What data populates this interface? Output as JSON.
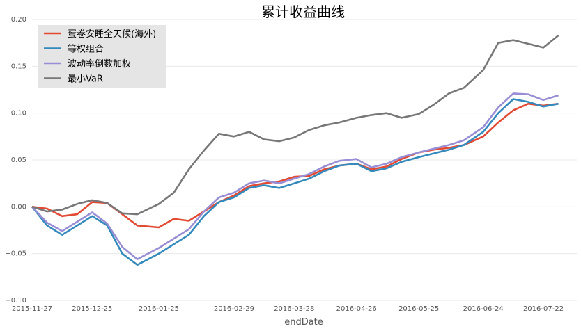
{
  "chart_data": {
    "type": "line",
    "title": "累计收益曲线",
    "xlabel": "endDate",
    "ylabel": "",
    "ylim": [
      -0.1,
      0.2
    ],
    "grid": true,
    "legend_position": "top-left",
    "x_ticks": [
      "2015-11-27",
      "2015-12-25",
      "2016-01-25",
      "2016-02-29",
      "2016-03-28",
      "2016-04-26",
      "2016-05-25",
      "2016-06-24",
      "2016-07-22"
    ],
    "y_ticks": [
      -0.1,
      -0.05,
      0.0,
      0.05,
      0.1,
      0.15,
      0.2
    ],
    "y_tick_labels": [
      "−0.10",
      "−0.05",
      "0.00",
      "0.05",
      "0.10",
      "0.15",
      "0.20"
    ],
    "x": [
      "2015-11-27",
      "2015-12-04",
      "2015-12-11",
      "2015-12-18",
      "2015-12-25",
      "2016-01-01",
      "2016-01-08",
      "2016-01-15",
      "2016-01-25",
      "2016-02-01",
      "2016-02-08",
      "2016-02-15",
      "2016-02-22",
      "2016-02-29",
      "2016-03-07",
      "2016-03-14",
      "2016-03-21",
      "2016-03-28",
      "2016-04-04",
      "2016-04-11",
      "2016-04-18",
      "2016-04-26",
      "2016-05-03",
      "2016-05-10",
      "2016-05-17",
      "2016-05-25",
      "2016-06-01",
      "2016-06-08",
      "2016-06-15",
      "2016-06-24",
      "2016-07-01",
      "2016-07-08",
      "2016-07-15",
      "2016-07-22",
      "2016-07-29"
    ],
    "series": [
      {
        "name": "蛋卷安睡全天候(海外)",
        "color": "#e24a33",
        "values": [
          0.0,
          -0.002,
          -0.01,
          -0.008,
          0.005,
          0.004,
          -0.008,
          -0.02,
          -0.022,
          -0.013,
          -0.015,
          -0.005,
          0.005,
          0.012,
          0.022,
          0.025,
          0.027,
          0.032,
          0.033,
          0.04,
          0.044,
          0.046,
          0.04,
          0.043,
          0.051,
          0.058,
          0.061,
          0.063,
          0.066,
          0.075,
          0.09,
          0.103,
          0.11,
          0.108,
          0.11
        ]
      },
      {
        "name": "等权组合",
        "color": "#348abd",
        "values": [
          0.0,
          -0.02,
          -0.03,
          -0.02,
          -0.01,
          -0.02,
          -0.05,
          -0.062,
          -0.05,
          -0.04,
          -0.03,
          -0.01,
          0.005,
          0.01,
          0.02,
          0.023,
          0.02,
          0.025,
          0.03,
          0.038,
          0.044,
          0.046,
          0.038,
          0.041,
          0.048,
          0.053,
          0.057,
          0.061,
          0.066,
          0.08,
          0.1,
          0.115,
          0.112,
          0.107,
          0.11
        ]
      },
      {
        "name": "波动率倒数加权",
        "color": "#988ed5",
        "values": [
          0.0,
          -0.017,
          -0.026,
          -0.016,
          -0.006,
          -0.018,
          -0.043,
          -0.056,
          -0.044,
          -0.034,
          -0.024,
          -0.005,
          0.01,
          0.015,
          0.025,
          0.028,
          0.025,
          0.03,
          0.035,
          0.043,
          0.049,
          0.051,
          0.042,
          0.046,
          0.053,
          0.058,
          0.062,
          0.066,
          0.071,
          0.085,
          0.106,
          0.121,
          0.12,
          0.114,
          0.119
        ]
      },
      {
        "name": "最小VaR",
        "color": "#777777",
        "values": [
          0.0,
          -0.005,
          -0.003,
          0.003,
          0.007,
          0.004,
          -0.007,
          -0.008,
          0.003,
          0.015,
          0.04,
          0.06,
          0.078,
          0.075,
          0.08,
          0.072,
          0.07,
          0.074,
          0.082,
          0.087,
          0.09,
          0.095,
          0.098,
          0.1,
          0.095,
          0.099,
          0.109,
          0.121,
          0.127,
          0.146,
          0.175,
          0.178,
          0.174,
          0.17,
          0.183
        ]
      }
    ]
  }
}
